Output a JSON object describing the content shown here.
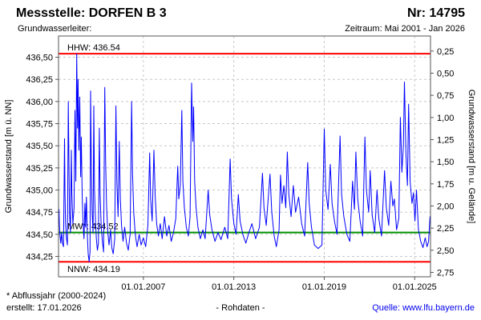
{
  "header": {
    "title": "Messstelle: DORFEN B 3",
    "number": "Nr: 14795",
    "aquifer_label": "Grundwasserleiter:",
    "period": "Zeitraum: Mai 2001 - Jan 2026"
  },
  "footer": {
    "footnote": "* Abflussjahr (2000-2024)",
    "created": "erstellt: 17.01.2026",
    "data_type": "- Rohdaten -",
    "source": "Quelle: www.lfu.bayern.de"
  },
  "chart_data": {
    "type": "line",
    "title": "Messstelle: DORFEN B 3",
    "colors": {
      "series": "#0000ff",
      "extreme_line": "#ff0000",
      "mean_line": "#009000",
      "grid": "#c8c8c8",
      "frame": "#555555",
      "text": "#000000"
    },
    "x_axis": {
      "ticks": [
        {
          "label": "01.01.2007",
          "year": 2007
        },
        {
          "label": "01.01.2013",
          "year": 2013
        },
        {
          "label": "01.01.2019",
          "year": 2019
        },
        {
          "label": "01.01.2025",
          "year": 2025
        }
      ],
      "range_years": [
        2001.37,
        2026.05
      ],
      "grid": true
    },
    "y_left": {
      "label": "Grundwasserstand [m ü. NN]",
      "ticks": [
        {
          "label": "436,50",
          "value": 436.5
        },
        {
          "label": "436,25",
          "value": 436.25
        },
        {
          "label": "436,00",
          "value": 436.0
        },
        {
          "label": "435,75",
          "value": 435.75
        },
        {
          "label": "435,50",
          "value": 435.5
        },
        {
          "label": "435,25",
          "value": 435.25
        },
        {
          "label": "435,00",
          "value": 435.0
        },
        {
          "label": "434,75",
          "value": 434.75
        },
        {
          "label": "434,50",
          "value": 434.5
        },
        {
          "label": "434,25",
          "value": 434.25
        }
      ],
      "range": [
        434.02,
        436.74
      ],
      "grid": true
    },
    "y_right": {
      "label": "Grundwasserstand [m u. Gelände]",
      "ground_level": 436.82,
      "ticks": [
        {
          "label": "0,25",
          "depth": 0.25
        },
        {
          "label": "0,50",
          "depth": 0.5
        },
        {
          "label": "0,75",
          "depth": 0.75
        },
        {
          "label": "1,00",
          "depth": 1.0
        },
        {
          "label": "1,25",
          "depth": 1.25
        },
        {
          "label": "1,50",
          "depth": 1.5
        },
        {
          "label": "1,75",
          "depth": 1.75
        },
        {
          "label": "2,00",
          "depth": 2.0
        },
        {
          "label": "2,25",
          "depth": 2.25
        },
        {
          "label": "2,50",
          "depth": 2.5
        },
        {
          "label": "2,75",
          "depth": 2.75
        }
      ]
    },
    "reference_lines": [
      {
        "name": "HHW",
        "label": "HHW: 436.54",
        "value": 436.54,
        "color": "#ff0000",
        "label_side": "above"
      },
      {
        "name": "MW",
        "label": "MW*: 434.52",
        "value": 434.52,
        "color": "#009000",
        "label_side": "above"
      },
      {
        "name": "NNW",
        "label": "NNW: 434.19",
        "value": 434.19,
        "color": "#ff0000",
        "label_side": "below"
      }
    ],
    "series": [
      {
        "name": "Grundwasserstand Rohdaten",
        "color": "#0000ff",
        "points": [
          [
            2001.4,
            434.78
          ],
          [
            2001.43,
            434.6
          ],
          [
            2001.47,
            434.48
          ],
          [
            2001.52,
            434.4
          ],
          [
            2001.58,
            434.52
          ],
          [
            2001.63,
            434.4
          ],
          [
            2001.7,
            434.36
          ],
          [
            2001.77,
            435.58
          ],
          [
            2001.8,
            434.95
          ],
          [
            2001.84,
            434.62
          ],
          [
            2001.9,
            434.45
          ],
          [
            2001.96,
            434.38
          ],
          [
            2002.02,
            436.0
          ],
          [
            2002.06,
            435.3
          ],
          [
            2002.1,
            434.75
          ],
          [
            2002.16,
            434.52
          ],
          [
            2002.22,
            435.45
          ],
          [
            2002.26,
            434.95
          ],
          [
            2002.32,
            434.62
          ],
          [
            2002.4,
            434.8
          ],
          [
            2002.46,
            435.9
          ],
          [
            2002.52,
            435.1
          ],
          [
            2002.58,
            436.54
          ],
          [
            2002.63,
            435.7
          ],
          [
            2002.67,
            436.25
          ],
          [
            2002.72,
            435.45
          ],
          [
            2002.78,
            436.05
          ],
          [
            2002.84,
            435.15
          ],
          [
            2002.88,
            435.6
          ],
          [
            2002.94,
            434.95
          ],
          [
            2003.0,
            434.62
          ],
          [
            2003.06,
            434.45
          ],
          [
            2003.12,
            434.85
          ],
          [
            2003.17,
            434.58
          ],
          [
            2003.22,
            434.92
          ],
          [
            2003.28,
            434.5
          ],
          [
            2003.34,
            434.28
          ],
          [
            2003.4,
            434.19
          ],
          [
            2003.46,
            434.3
          ],
          [
            2003.5,
            436.12
          ],
          [
            2003.55,
            435.2
          ],
          [
            2003.6,
            434.75
          ],
          [
            2003.66,
            434.52
          ],
          [
            2003.71,
            435.95
          ],
          [
            2003.76,
            435.0
          ],
          [
            2003.82,
            434.65
          ],
          [
            2003.88,
            434.45
          ],
          [
            2003.95,
            434.32
          ],
          [
            2004.02,
            434.4
          ],
          [
            2004.08,
            435.7
          ],
          [
            2004.13,
            434.95
          ],
          [
            2004.2,
            434.6
          ],
          [
            2004.28,
            434.42
          ],
          [
            2004.36,
            434.3
          ],
          [
            2004.44,
            436.16
          ],
          [
            2004.5,
            435.3
          ],
          [
            2004.56,
            434.8
          ],
          [
            2004.64,
            434.52
          ],
          [
            2004.72,
            434.38
          ],
          [
            2004.82,
            434.55
          ],
          [
            2004.9,
            434.35
          ],
          [
            2005.0,
            434.28
          ],
          [
            2005.1,
            434.45
          ],
          [
            2005.18,
            435.95
          ],
          [
            2005.24,
            435.1
          ],
          [
            2005.32,
            434.7
          ],
          [
            2005.4,
            435.55
          ],
          [
            2005.47,
            434.9
          ],
          [
            2005.55,
            434.6
          ],
          [
            2005.65,
            434.42
          ],
          [
            2005.76,
            434.58
          ],
          [
            2005.88,
            434.4
          ],
          [
            2006.0,
            434.32
          ],
          [
            2006.12,
            434.5
          ],
          [
            2006.22,
            436.0
          ],
          [
            2006.28,
            435.2
          ],
          [
            2006.36,
            434.75
          ],
          [
            2006.46,
            434.5
          ],
          [
            2006.58,
            434.36
          ],
          [
            2006.72,
            434.5
          ],
          [
            2006.85,
            434.38
          ],
          [
            2007.0,
            434.46
          ],
          [
            2007.15,
            434.36
          ],
          [
            2007.3,
            434.6
          ],
          [
            2007.42,
            435.42
          ],
          [
            2007.48,
            434.9
          ],
          [
            2007.58,
            434.65
          ],
          [
            2007.7,
            435.45
          ],
          [
            2007.78,
            434.95
          ],
          [
            2007.88,
            434.62
          ],
          [
            2008.0,
            434.48
          ],
          [
            2008.12,
            434.62
          ],
          [
            2008.25,
            434.45
          ],
          [
            2008.4,
            434.7
          ],
          [
            2008.55,
            434.48
          ],
          [
            2008.7,
            434.6
          ],
          [
            2008.85,
            434.42
          ],
          [
            2009.0,
            434.52
          ],
          [
            2009.15,
            434.68
          ],
          [
            2009.28,
            435.27
          ],
          [
            2009.35,
            434.9
          ],
          [
            2009.45,
            435.05
          ],
          [
            2009.55,
            435.9
          ],
          [
            2009.62,
            435.1
          ],
          [
            2009.72,
            434.8
          ],
          [
            2009.85,
            434.58
          ],
          [
            2009.98,
            434.48
          ],
          [
            2010.1,
            434.7
          ],
          [
            2010.2,
            436.21
          ],
          [
            2010.28,
            435.55
          ],
          [
            2010.33,
            435.94
          ],
          [
            2010.4,
            435.1
          ],
          [
            2010.5,
            434.8
          ],
          [
            2010.62,
            434.58
          ],
          [
            2010.78,
            434.45
          ],
          [
            2010.95,
            434.55
          ],
          [
            2011.1,
            434.45
          ],
          [
            2011.3,
            435.0
          ],
          [
            2011.4,
            434.72
          ],
          [
            2011.55,
            434.55
          ],
          [
            2011.75,
            434.42
          ],
          [
            2011.95,
            434.52
          ],
          [
            2012.15,
            434.44
          ],
          [
            2012.4,
            434.58
          ],
          [
            2012.6,
            434.45
          ],
          [
            2012.76,
            435.35
          ],
          [
            2012.85,
            434.9
          ],
          [
            2013.0,
            434.62
          ],
          [
            2013.15,
            434.5
          ],
          [
            2013.3,
            434.95
          ],
          [
            2013.42,
            434.65
          ],
          [
            2013.6,
            434.5
          ],
          [
            2013.8,
            434.4
          ],
          [
            2014.0,
            434.52
          ],
          [
            2014.2,
            434.62
          ],
          [
            2014.45,
            434.45
          ],
          [
            2014.7,
            434.58
          ],
          [
            2014.9,
            435.19
          ],
          [
            2015.0,
            434.8
          ],
          [
            2015.15,
            434.6
          ],
          [
            2015.4,
            435.18
          ],
          [
            2015.52,
            434.75
          ],
          [
            2015.68,
            434.48
          ],
          [
            2015.82,
            434.36
          ],
          [
            2016.0,
            434.55
          ],
          [
            2016.1,
            435.17
          ],
          [
            2016.2,
            434.85
          ],
          [
            2016.32,
            435.05
          ],
          [
            2016.45,
            434.8
          ],
          [
            2016.55,
            435.43
          ],
          [
            2016.65,
            434.95
          ],
          [
            2016.8,
            434.7
          ],
          [
            2016.95,
            435.05
          ],
          [
            2017.1,
            434.75
          ],
          [
            2017.3,
            434.92
          ],
          [
            2017.5,
            434.62
          ],
          [
            2017.7,
            434.48
          ],
          [
            2017.9,
            435.31
          ],
          [
            2018.0,
            434.85
          ],
          [
            2018.15,
            434.58
          ],
          [
            2018.35,
            434.38
          ],
          [
            2018.6,
            434.34
          ],
          [
            2018.85,
            434.38
          ],
          [
            2019.0,
            435.69
          ],
          [
            2019.1,
            435.0
          ],
          [
            2019.25,
            434.78
          ],
          [
            2019.4,
            435.29
          ],
          [
            2019.52,
            434.85
          ],
          [
            2019.68,
            434.65
          ],
          [
            2019.85,
            434.5
          ],
          [
            2020.05,
            435.61
          ],
          [
            2020.15,
            434.95
          ],
          [
            2020.3,
            434.7
          ],
          [
            2020.5,
            434.5
          ],
          [
            2020.7,
            434.42
          ],
          [
            2020.88,
            435.1
          ],
          [
            2021.0,
            434.78
          ],
          [
            2021.1,
            435.43
          ],
          [
            2021.22,
            434.9
          ],
          [
            2021.38,
            434.65
          ],
          [
            2021.55,
            434.48
          ],
          [
            2021.7,
            435.6
          ],
          [
            2021.8,
            435.0
          ],
          [
            2021.95,
            434.75
          ],
          [
            2022.05,
            435.22
          ],
          [
            2022.18,
            434.72
          ],
          [
            2022.35,
            434.52
          ],
          [
            2022.5,
            435.0
          ],
          [
            2022.62,
            434.68
          ],
          [
            2022.8,
            434.48
          ],
          [
            2023.0,
            435.22
          ],
          [
            2023.12,
            434.8
          ],
          [
            2023.28,
            434.6
          ],
          [
            2023.42,
            435.1
          ],
          [
            2023.55,
            434.82
          ],
          [
            2023.65,
            434.9
          ],
          [
            2023.8,
            434.55
          ],
          [
            2023.95,
            434.68
          ],
          [
            2024.05,
            435.82
          ],
          [
            2024.15,
            435.2
          ],
          [
            2024.25,
            435.5
          ],
          [
            2024.32,
            436.22
          ],
          [
            2024.42,
            435.4
          ],
          [
            2024.52,
            435.05
          ],
          [
            2024.6,
            435.97
          ],
          [
            2024.7,
            435.1
          ],
          [
            2024.82,
            434.85
          ],
          [
            2024.92,
            434.97
          ],
          [
            2025.02,
            434.65
          ],
          [
            2025.12,
            435.0
          ],
          [
            2025.25,
            434.55
          ],
          [
            2025.4,
            434.42
          ],
          [
            2025.55,
            434.35
          ],
          [
            2025.7,
            434.46
          ],
          [
            2025.82,
            434.36
          ],
          [
            2025.92,
            434.42
          ],
          [
            2026.02,
            434.7
          ]
        ]
      }
    ]
  }
}
